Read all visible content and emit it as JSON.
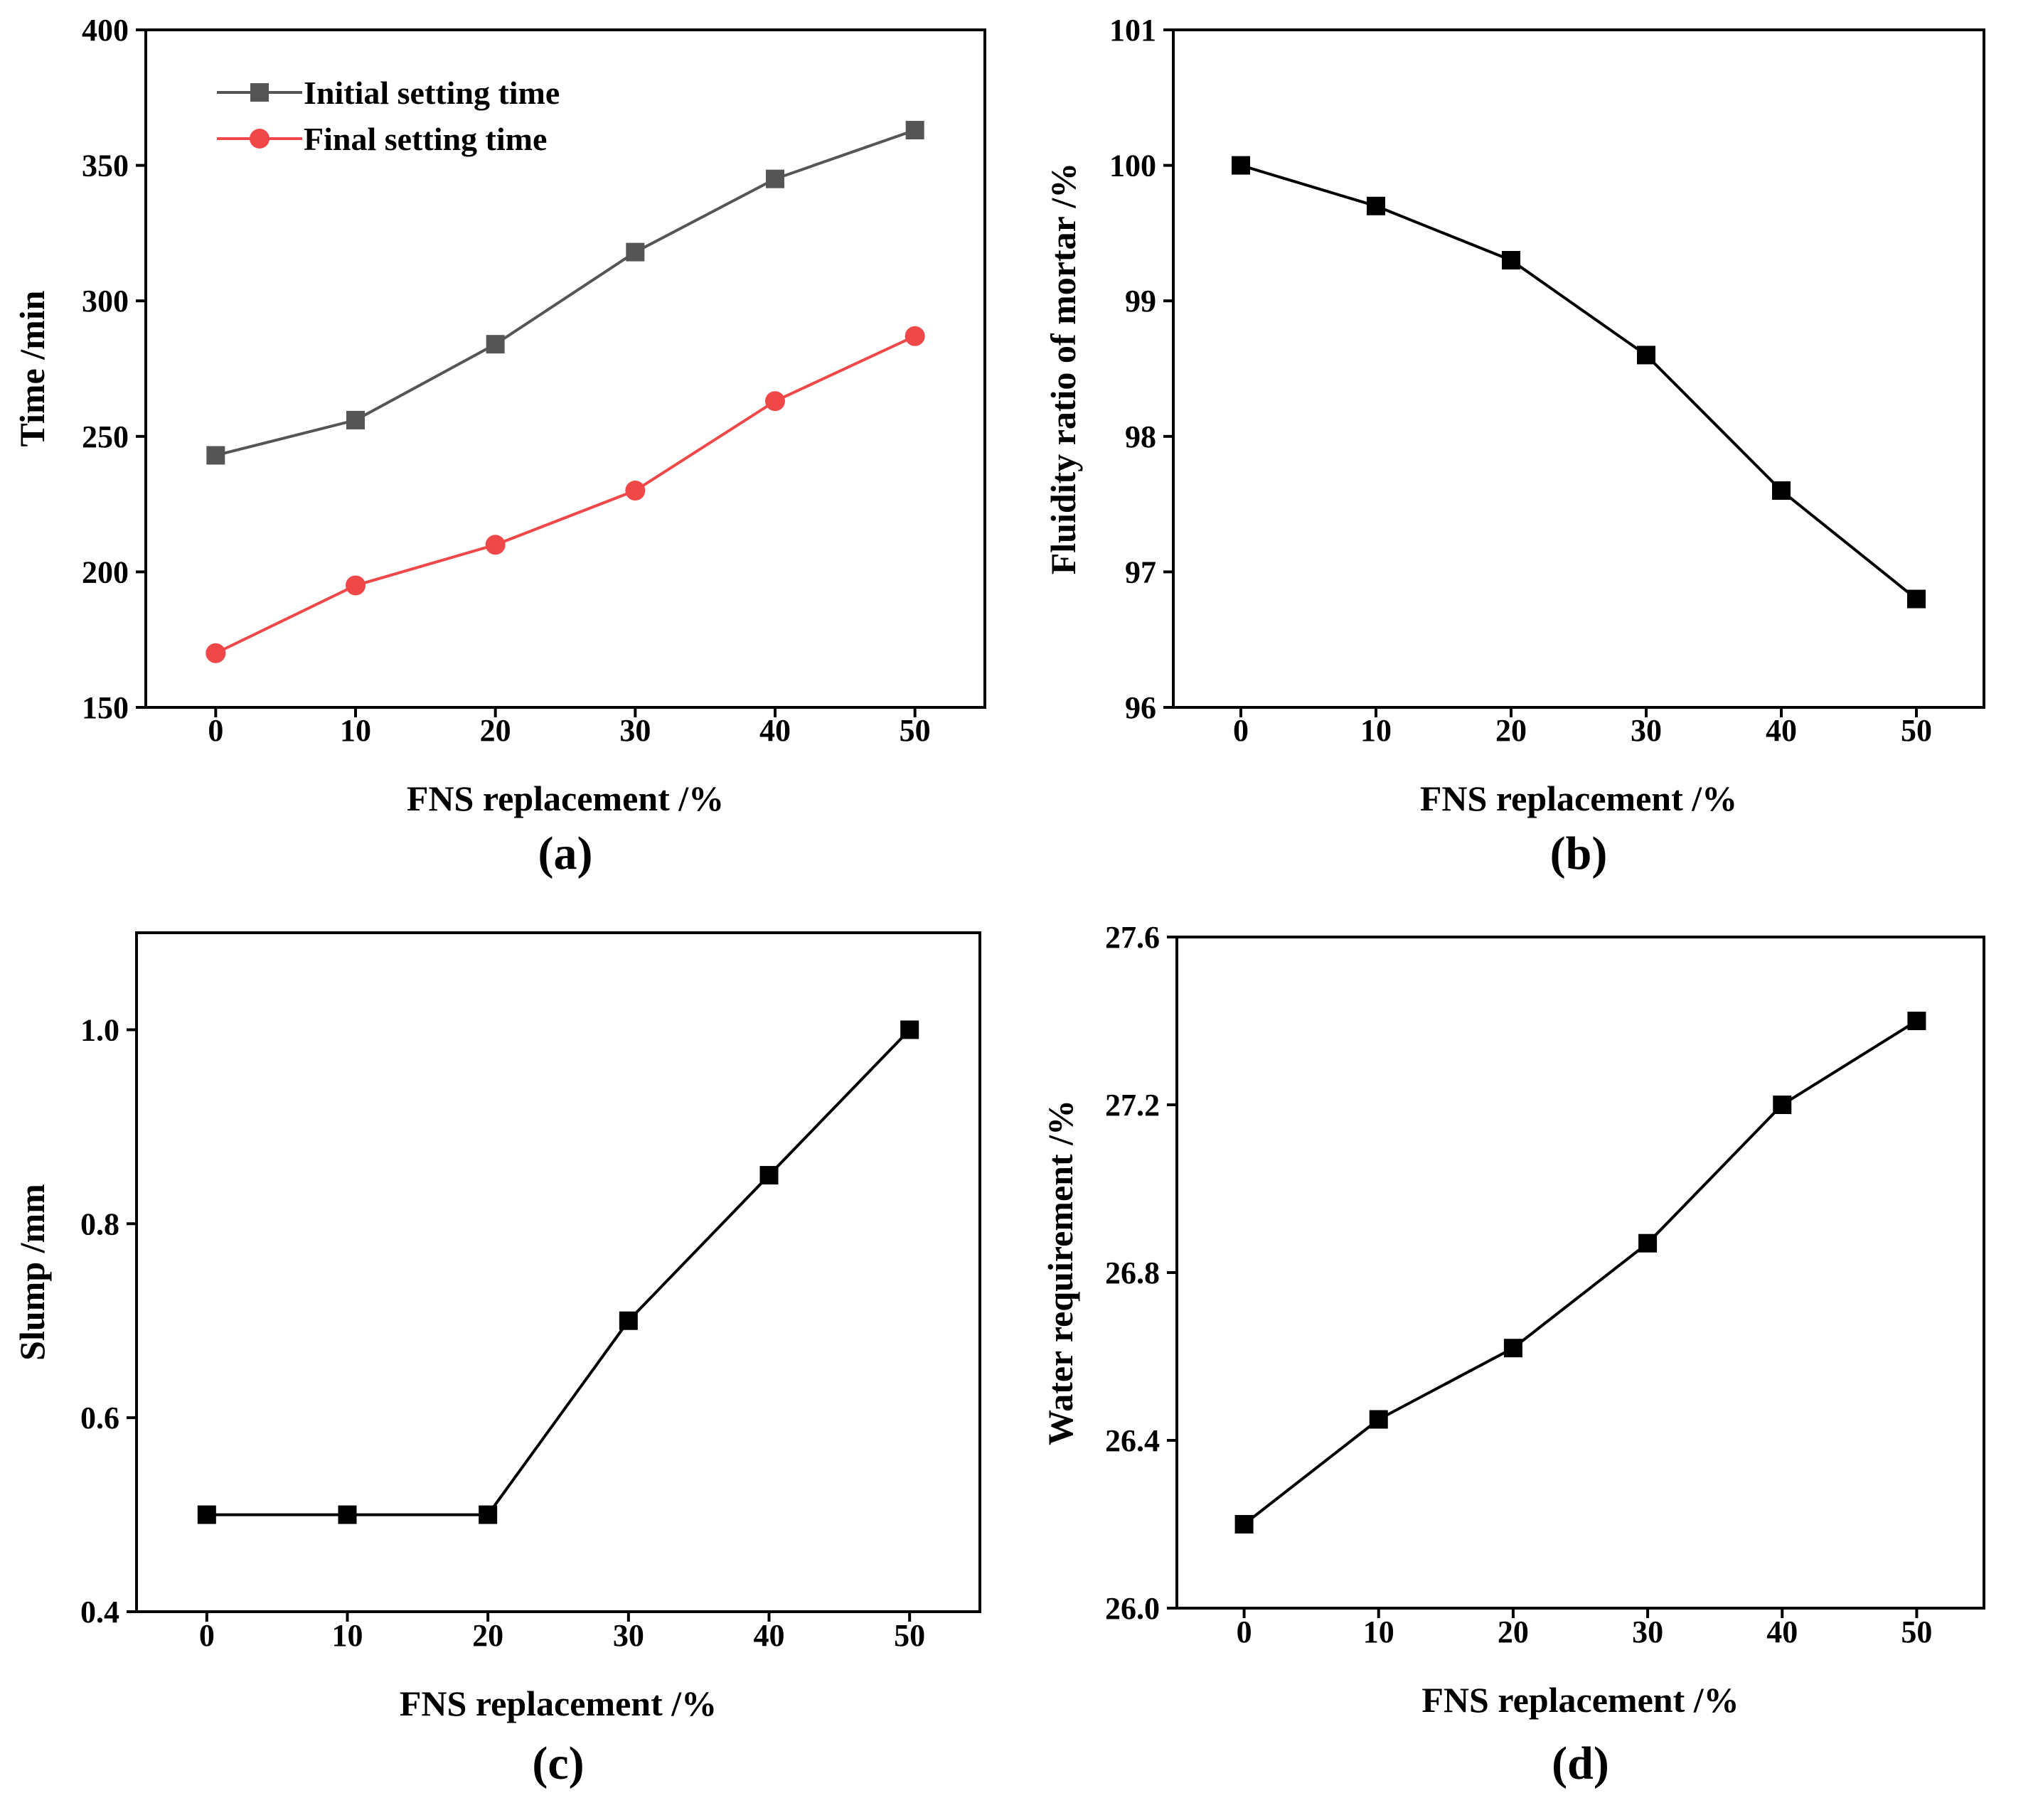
{
  "chart_data": [
    {
      "id": "a",
      "type": "line",
      "panel_label": "(a)",
      "xlabel": "FNS replacement /%",
      "ylabel": "Time /min",
      "x": [
        0,
        10,
        20,
        30,
        40,
        50
      ],
      "xticks": [
        "0",
        "10",
        "20",
        "30",
        "40",
        "50"
      ],
      "ylim": [
        150,
        400
      ],
      "yticks": [
        "150",
        "200",
        "250",
        "300",
        "350",
        "400"
      ],
      "series": [
        {
          "name": "Initial setting time",
          "marker": "square",
          "color": "#555555",
          "values": [
            243,
            256,
            284,
            318,
            345,
            363
          ]
        },
        {
          "name": "Final setting time",
          "marker": "circle",
          "color": "#f04848",
          "values": [
            170,
            195,
            210,
            230,
            263,
            287
          ]
        }
      ],
      "legend": "top-left"
    },
    {
      "id": "b",
      "type": "line",
      "panel_label": "(b)",
      "xlabel": "FNS replacement /%",
      "ylabel": "Fluidity ratio of mortar /%",
      "x": [
        0,
        10,
        20,
        30,
        40,
        50
      ],
      "xticks": [
        "0",
        "10",
        "20",
        "30",
        "40",
        "50"
      ],
      "ylim": [
        96,
        101
      ],
      "yticks": [
        "96",
        "97",
        "98",
        "99",
        "100",
        "101"
      ],
      "series": [
        {
          "name": "Fluidity ratio",
          "marker": "square",
          "color": "#000000",
          "values": [
            100.0,
            99.7,
            99.3,
            98.6,
            97.6,
            96.8
          ]
        }
      ]
    },
    {
      "id": "c",
      "type": "line",
      "panel_label": "(c)",
      "xlabel": "FNS replacement /%",
      "ylabel": "Slump /mm",
      "x": [
        0,
        10,
        20,
        30,
        40,
        50
      ],
      "xticks": [
        "0",
        "10",
        "20",
        "30",
        "40",
        "50"
      ],
      "ylim": [
        0.4,
        1.1
      ],
      "yticks": [
        "0.4",
        "0.6",
        "0.8",
        "1.0"
      ],
      "series": [
        {
          "name": "Slump",
          "marker": "square",
          "color": "#000000",
          "values": [
            0.5,
            0.5,
            0.5,
            0.7,
            0.85,
            1.0
          ]
        }
      ]
    },
    {
      "id": "d",
      "type": "line",
      "panel_label": "(d)",
      "xlabel": "FNS replacement /%",
      "ylabel": "Water requirement /%",
      "x": [
        0,
        10,
        20,
        30,
        40,
        50
      ],
      "xticks": [
        "0",
        "10",
        "20",
        "30",
        "40",
        "50"
      ],
      "ylim": [
        26.0,
        27.6
      ],
      "yticks": [
        "26.0",
        "26.4",
        "26.8",
        "27.2",
        "27.6"
      ],
      "series": [
        {
          "name": "Water requirement",
          "marker": "square",
          "color": "#000000",
          "values": [
            26.2,
            26.45,
            26.62,
            26.87,
            27.2,
            27.4
          ]
        }
      ]
    }
  ]
}
